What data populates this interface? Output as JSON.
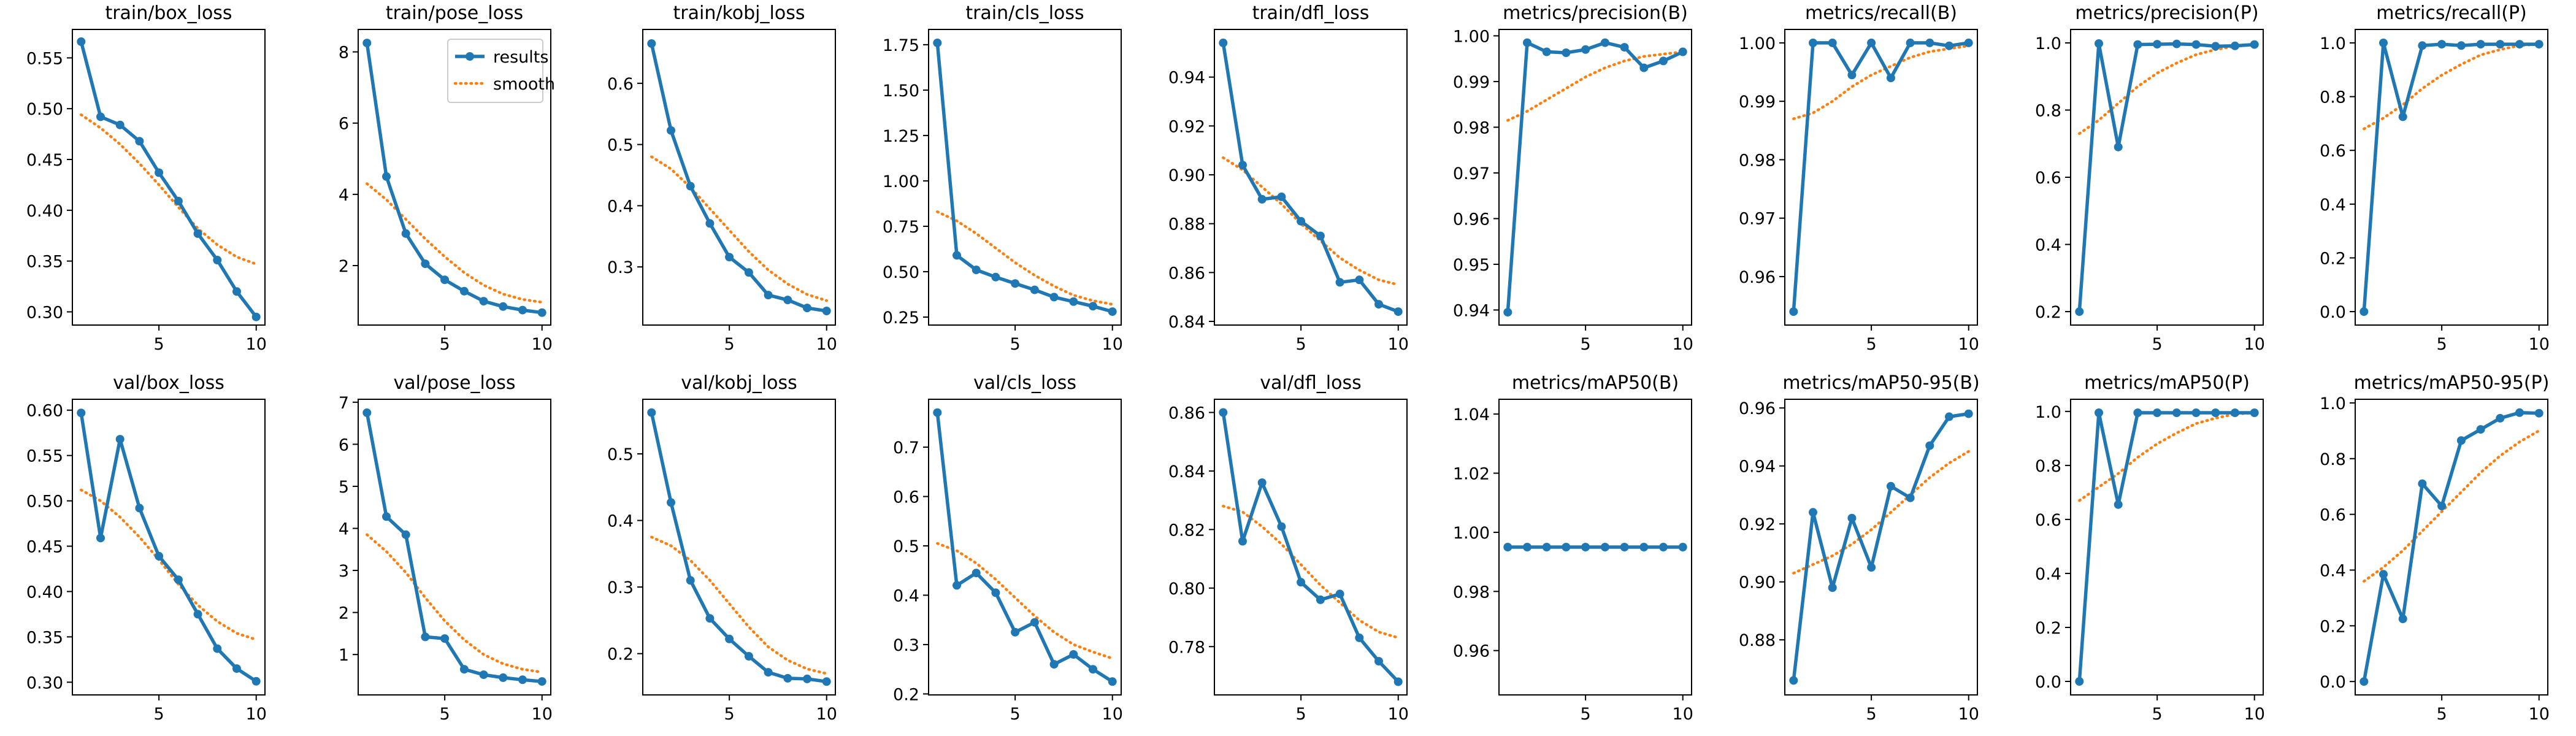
{
  "legend": {
    "results": "results",
    "smooth": "smooth",
    "placement": "upper right (train/pose_loss panel)"
  },
  "colors": {
    "results": "#1f77b4",
    "smooth": "#ff7f0e",
    "axes": "#000000",
    "background": "#ffffff"
  },
  "chart_data": [
    {
      "type": "line",
      "title": "train/box_loss",
      "x": [
        1,
        2,
        3,
        4,
        5,
        6,
        7,
        8,
        9,
        10
      ],
      "series": [
        {
          "name": "results",
          "values": [
            0.566,
            0.492,
            0.484,
            0.468,
            0.437,
            0.409,
            0.377,
            0.351,
            0.32,
            0.295
          ]
        },
        {
          "name": "smooth",
          "values": [
            0.494,
            0.481,
            0.465,
            0.446,
            0.425,
            0.403,
            0.382,
            0.366,
            0.354,
            0.347
          ]
        }
      ],
      "xlim": [
        0.55,
        10.45
      ],
      "ylim": [
        0.287,
        0.578
      ],
      "yticks": [
        0.3,
        0.35,
        0.4,
        0.45,
        0.5,
        0.55
      ],
      "yfmt": 2,
      "xticks": [
        5,
        10
      ],
      "grid": false
    },
    {
      "type": "line",
      "title": "train/pose_loss",
      "x": [
        1,
        2,
        3,
        4,
        5,
        6,
        7,
        8,
        9,
        10
      ],
      "series": [
        {
          "name": "results",
          "values": [
            8.25,
            4.5,
            2.9,
            2.05,
            1.6,
            1.28,
            1.0,
            0.85,
            0.75,
            0.68
          ]
        },
        {
          "name": "smooth",
          "values": [
            4.3,
            3.85,
            3.3,
            2.75,
            2.25,
            1.8,
            1.45,
            1.2,
            1.05,
            0.97
          ]
        }
      ],
      "xlim": [
        0.55,
        10.45
      ],
      "ylim": [
        0.33,
        8.63
      ],
      "yticks": [
        2,
        4,
        6,
        8
      ],
      "yfmt": 0,
      "xticks": [
        5,
        10
      ],
      "grid": false,
      "legend": true
    },
    {
      "type": "line",
      "title": "train/kobj_loss",
      "x": [
        1,
        2,
        3,
        4,
        5,
        6,
        7,
        8,
        9,
        10
      ],
      "series": [
        {
          "name": "results",
          "values": [
            0.665,
            0.523,
            0.432,
            0.371,
            0.316,
            0.291,
            0.254,
            0.246,
            0.233,
            0.228
          ]
        },
        {
          "name": "smooth",
          "values": [
            0.48,
            0.46,
            0.43,
            0.395,
            0.36,
            0.325,
            0.295,
            0.272,
            0.255,
            0.245
          ]
        }
      ],
      "xlim": [
        0.55,
        10.45
      ],
      "ylim": [
        0.205,
        0.688
      ],
      "yticks": [
        0.3,
        0.4,
        0.5,
        0.6
      ],
      "yfmt": 1,
      "xticks": [
        5,
        10
      ],
      "grid": false
    },
    {
      "type": "line",
      "title": "train/cls_loss",
      "x": [
        1,
        2,
        3,
        4,
        5,
        6,
        7,
        8,
        9,
        10
      ],
      "series": [
        {
          "name": "results",
          "values": [
            1.76,
            0.59,
            0.51,
            0.47,
            0.435,
            0.4,
            0.36,
            0.335,
            0.31,
            0.28
          ]
        },
        {
          "name": "smooth",
          "values": [
            0.83,
            0.78,
            0.71,
            0.63,
            0.55,
            0.48,
            0.42,
            0.37,
            0.34,
            0.32
          ]
        }
      ],
      "xlim": [
        0.55,
        10.45
      ],
      "ylim": [
        0.206,
        1.834
      ],
      "yticks": [
        0.25,
        0.5,
        0.75,
        1.0,
        1.25,
        1.5,
        1.75
      ],
      "yfmt": 2,
      "xticks": [
        5,
        10
      ],
      "grid": false
    },
    {
      "type": "line",
      "title": "train/dfl_loss",
      "x": [
        1,
        2,
        3,
        4,
        5,
        6,
        7,
        8,
        9,
        10
      ],
      "series": [
        {
          "name": "results",
          "values": [
            0.954,
            0.904,
            0.89,
            0.891,
            0.881,
            0.875,
            0.856,
            0.857,
            0.847,
            0.844
          ]
        },
        {
          "name": "smooth",
          "values": [
            0.907,
            0.902,
            0.895,
            0.888,
            0.88,
            0.873,
            0.866,
            0.861,
            0.857,
            0.855
          ]
        }
      ],
      "xlim": [
        0.55,
        10.45
      ],
      "ylim": [
        0.8385,
        0.9595
      ],
      "yticks": [
        0.84,
        0.86,
        0.88,
        0.9,
        0.92,
        0.94
      ],
      "yfmt": 2,
      "xticks": [
        5,
        10
      ],
      "grid": false
    },
    {
      "type": "line",
      "title": "metrics/precision(B)",
      "x": [
        1,
        2,
        3,
        4,
        5,
        6,
        7,
        8,
        9,
        10
      ],
      "series": [
        {
          "name": "results",
          "values": [
            0.9395,
            0.9985,
            0.9965,
            0.9963,
            0.997,
            0.9985,
            0.9975,
            0.993,
            0.9945,
            0.9965
          ]
        },
        {
          "name": "smooth",
          "values": [
            0.9815,
            0.9835,
            0.986,
            0.9885,
            0.991,
            0.993,
            0.9945,
            0.9955,
            0.996,
            0.9965
          ]
        }
      ],
      "xlim": [
        0.55,
        10.45
      ],
      "ylim": [
        0.9367,
        1.0014
      ],
      "yticks": [
        0.94,
        0.95,
        0.96,
        0.97,
        0.98,
        0.99,
        1.0
      ],
      "yfmt": 2,
      "xticks": [
        5,
        10
      ],
      "grid": false
    },
    {
      "type": "line",
      "title": "metrics/recall(B)",
      "x": [
        1,
        2,
        3,
        4,
        5,
        6,
        7,
        8,
        9,
        10
      ],
      "series": [
        {
          "name": "results",
          "values": [
            0.954,
            1.0,
            1.0,
            0.9945,
            1.0,
            0.994,
            1.0,
            1.0,
            0.9995,
            1.0
          ]
        },
        {
          "name": "smooth",
          "values": [
            0.987,
            0.988,
            0.99,
            0.9925,
            0.9945,
            0.996,
            0.9975,
            0.9985,
            0.999,
            0.9995
          ]
        }
      ],
      "xlim": [
        0.55,
        10.45
      ],
      "ylim": [
        0.9517,
        1.0023
      ],
      "yticks": [
        0.96,
        0.97,
        0.98,
        0.99,
        1.0
      ],
      "yfmt": 2,
      "xticks": [
        5,
        10
      ],
      "grid": false
    },
    {
      "type": "line",
      "title": "metrics/precision(P)",
      "x": [
        1,
        2,
        3,
        4,
        5,
        6,
        7,
        8,
        9,
        10
      ],
      "series": [
        {
          "name": "results",
          "values": [
            0.2,
            0.998,
            0.69,
            0.995,
            0.996,
            0.997,
            0.995,
            0.99,
            0.991,
            0.995
          ]
        },
        {
          "name": "smooth",
          "values": [
            0.73,
            0.77,
            0.82,
            0.87,
            0.91,
            0.94,
            0.965,
            0.98,
            0.99,
            0.995
          ]
        }
      ],
      "xlim": [
        0.55,
        10.45
      ],
      "ylim": [
        0.16,
        1.04
      ],
      "yticks": [
        0.2,
        0.4,
        0.6,
        0.8,
        1.0
      ],
      "yfmt": 1,
      "xticks": [
        5,
        10
      ],
      "grid": false
    },
    {
      "type": "line",
      "title": "metrics/recall(P)",
      "x": [
        1,
        2,
        3,
        4,
        5,
        6,
        7,
        8,
        9,
        10
      ],
      "series": [
        {
          "name": "results",
          "values": [
            0.0,
            1.0,
            0.725,
            0.99,
            0.995,
            0.99,
            0.995,
            0.995,
            0.995,
            0.995
          ]
        },
        {
          "name": "smooth",
          "values": [
            0.68,
            0.72,
            0.77,
            0.83,
            0.88,
            0.92,
            0.955,
            0.975,
            0.99,
            0.995
          ]
        }
      ],
      "xlim": [
        0.55,
        10.45
      ],
      "ylim": [
        -0.05,
        1.05
      ],
      "yticks": [
        0.0,
        0.2,
        0.4,
        0.6,
        0.8,
        1.0
      ],
      "yfmt": 1,
      "xticks": [
        5,
        10
      ],
      "grid": false
    },
    {
      "type": "line",
      "title": "val/box_loss",
      "x": [
        1,
        2,
        3,
        4,
        5,
        6,
        7,
        8,
        9,
        10
      ],
      "series": [
        {
          "name": "results",
          "values": [
            0.597,
            0.459,
            0.568,
            0.492,
            0.439,
            0.413,
            0.375,
            0.337,
            0.315,
            0.301
          ]
        },
        {
          "name": "smooth",
          "values": [
            0.512,
            0.5,
            0.482,
            0.46,
            0.435,
            0.408,
            0.385,
            0.367,
            0.354,
            0.347
          ]
        }
      ],
      "xlim": [
        0.55,
        10.45
      ],
      "ylim": [
        0.286,
        0.612
      ],
      "yticks": [
        0.3,
        0.35,
        0.4,
        0.45,
        0.5,
        0.55,
        0.6
      ],
      "yfmt": 2,
      "xticks": [
        5,
        10
      ],
      "grid": false
    },
    {
      "type": "line",
      "title": "val/pose_loss",
      "x": [
        1,
        2,
        3,
        4,
        5,
        6,
        7,
        8,
        9,
        10
      ],
      "series": [
        {
          "name": "results",
          "values": [
            6.75,
            4.28,
            3.85,
            1.42,
            1.38,
            0.65,
            0.52,
            0.45,
            0.4,
            0.36
          ]
        },
        {
          "name": "smooth",
          "values": [
            3.85,
            3.45,
            2.95,
            2.35,
            1.8,
            1.35,
            1.0,
            0.78,
            0.65,
            0.58
          ]
        }
      ],
      "xlim": [
        0.55,
        10.45
      ],
      "ylim": [
        0.04,
        7.07
      ],
      "yticks": [
        1,
        2,
        3,
        4,
        5,
        6,
        7
      ],
      "yfmt": 0,
      "xticks": [
        5,
        10
      ],
      "grid": false
    },
    {
      "type": "line",
      "title": "val/kobj_loss",
      "x": [
        1,
        2,
        3,
        4,
        5,
        6,
        7,
        8,
        9,
        10
      ],
      "series": [
        {
          "name": "results",
          "values": [
            0.562,
            0.427,
            0.31,
            0.253,
            0.222,
            0.196,
            0.172,
            0.163,
            0.162,
            0.158
          ]
        },
        {
          "name": "smooth",
          "values": [
            0.375,
            0.362,
            0.34,
            0.31,
            0.275,
            0.24,
            0.21,
            0.19,
            0.177,
            0.17
          ]
        }
      ],
      "xlim": [
        0.55,
        10.45
      ],
      "ylim": [
        0.138,
        0.582
      ],
      "yticks": [
        0.2,
        0.3,
        0.4,
        0.5
      ],
      "yfmt": 1,
      "xticks": [
        5,
        10
      ],
      "grid": false
    },
    {
      "type": "line",
      "title": "val/cls_loss",
      "x": [
        1,
        2,
        3,
        4,
        5,
        6,
        7,
        8,
        9,
        10
      ],
      "series": [
        {
          "name": "results",
          "values": [
            0.77,
            0.42,
            0.445,
            0.405,
            0.325,
            0.345,
            0.26,
            0.28,
            0.25,
            0.225
          ]
        },
        {
          "name": "smooth",
          "values": [
            0.505,
            0.49,
            0.465,
            0.432,
            0.395,
            0.358,
            0.325,
            0.3,
            0.285,
            0.272
          ]
        }
      ],
      "xlim": [
        0.55,
        10.45
      ],
      "ylim": [
        0.198,
        0.797
      ],
      "yticks": [
        0.2,
        0.3,
        0.4,
        0.5,
        0.6,
        0.7
      ],
      "yfmt": 1,
      "xticks": [
        5,
        10
      ],
      "grid": false
    },
    {
      "type": "line",
      "title": "val/dfl_loss",
      "x": [
        1,
        2,
        3,
        4,
        5,
        6,
        7,
        8,
        9,
        10
      ],
      "series": [
        {
          "name": "results",
          "values": [
            0.86,
            0.816,
            0.836,
            0.821,
            0.802,
            0.796,
            0.798,
            0.783,
            0.775,
            0.768
          ]
        },
        {
          "name": "smooth",
          "values": [
            0.828,
            0.826,
            0.821,
            0.815,
            0.808,
            0.801,
            0.795,
            0.789,
            0.785,
            0.783
          ]
        }
      ],
      "xlim": [
        0.55,
        10.45
      ],
      "ylim": [
        0.7635,
        0.8645
      ],
      "yticks": [
        0.78,
        0.8,
        0.82,
        0.84,
        0.86
      ],
      "yfmt": 2,
      "xticks": [
        5,
        10
      ],
      "grid": false
    },
    {
      "type": "line",
      "title": "metrics/mAP50(B)",
      "x": [
        1,
        2,
        3,
        4,
        5,
        6,
        7,
        8,
        9,
        10
      ],
      "series": [
        {
          "name": "results",
          "values": [
            0.995,
            0.995,
            0.995,
            0.995,
            0.995,
            0.995,
            0.995,
            0.995,
            0.995,
            0.995
          ]
        },
        {
          "name": "smooth",
          "values": [
            0.995,
            0.995,
            0.995,
            0.995,
            0.995,
            0.995,
            0.995,
            0.995,
            0.995,
            0.995
          ]
        }
      ],
      "xlim": [
        0.55,
        10.45
      ],
      "ylim": [
        0.945,
        1.045
      ],
      "yticks": [
        0.96,
        0.98,
        1.0,
        1.02,
        1.04
      ],
      "yfmt": 2,
      "xticks": [
        5,
        10
      ],
      "grid": false
    },
    {
      "type": "line",
      "title": "metrics/mAP50-95(B)",
      "x": [
        1,
        2,
        3,
        4,
        5,
        6,
        7,
        8,
        9,
        10
      ],
      "series": [
        {
          "name": "results",
          "values": [
            0.866,
            0.924,
            0.898,
            0.922,
            0.905,
            0.933,
            0.929,
            0.947,
            0.957,
            0.958
          ]
        },
        {
          "name": "smooth",
          "values": [
            0.903,
            0.906,
            0.909,
            0.913,
            0.918,
            0.924,
            0.93,
            0.936,
            0.941,
            0.945
          ]
        }
      ],
      "xlim": [
        0.55,
        10.45
      ],
      "ylim": [
        0.861,
        0.963
      ],
      "yticks": [
        0.88,
        0.9,
        0.92,
        0.94,
        0.96
      ],
      "yfmt": 2,
      "xticks": [
        5,
        10
      ],
      "grid": false
    },
    {
      "type": "line",
      "title": "metrics/mAP50(P)",
      "x": [
        1,
        2,
        3,
        4,
        5,
        6,
        7,
        8,
        9,
        10
      ],
      "series": [
        {
          "name": "results",
          "values": [
            0.0,
            0.995,
            0.655,
            0.995,
            0.995,
            0.995,
            0.995,
            0.995,
            0.995,
            0.995
          ]
        },
        {
          "name": "smooth",
          "values": [
            0.67,
            0.72,
            0.77,
            0.83,
            0.88,
            0.92,
            0.955,
            0.975,
            0.99,
            0.995
          ]
        }
      ],
      "xlim": [
        0.55,
        10.45
      ],
      "ylim": [
        -0.05,
        1.045
      ],
      "yticks": [
        0.0,
        0.2,
        0.4,
        0.6,
        0.8,
        1.0
      ],
      "yfmt": 1,
      "xticks": [
        5,
        10
      ],
      "grid": false
    },
    {
      "type": "line",
      "title": "metrics/mAP50-95(P)",
      "x": [
        1,
        2,
        3,
        4,
        5,
        6,
        7,
        8,
        9,
        10
      ],
      "series": [
        {
          "name": "results",
          "values": [
            0.0,
            0.385,
            0.225,
            0.71,
            0.63,
            0.865,
            0.905,
            0.945,
            0.965,
            0.963
          ]
        },
        {
          "name": "smooth",
          "values": [
            0.36,
            0.41,
            0.47,
            0.54,
            0.61,
            0.68,
            0.75,
            0.81,
            0.86,
            0.9
          ]
        }
      ],
      "xlim": [
        0.55,
        10.45
      ],
      "ylim": [
        -0.048,
        1.013
      ],
      "yticks": [
        0.0,
        0.2,
        0.4,
        0.6,
        0.8,
        1.0
      ],
      "yfmt": 1,
      "xticks": [
        5,
        10
      ],
      "grid": false
    }
  ]
}
